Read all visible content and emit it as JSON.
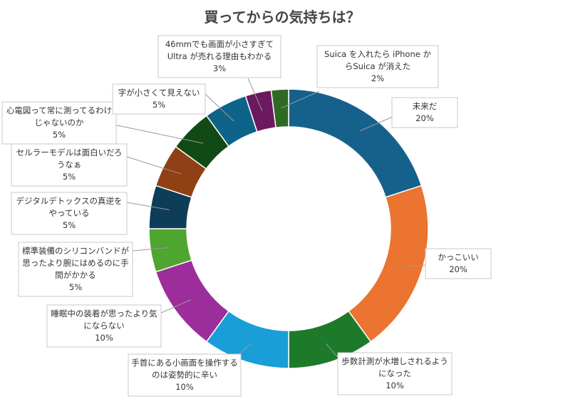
{
  "chart_data": {
    "type": "pie",
    "title": "買ってからの気持ちは？",
    "unit": "%",
    "slices": [
      {
        "lines": [
          "未来だ"
        ],
        "value": 20,
        "value_label": "20%",
        "color": "#15618c"
      },
      {
        "lines": [
          "かっこいい"
        ],
        "value": 20,
        "value_label": "20%",
        "color": "#ea7430"
      },
      {
        "lines": [
          "歩数計測が水増しされるよう",
          "になった"
        ],
        "value": 10,
        "value_label": "10%",
        "color": "#1d7a2b"
      },
      {
        "lines": [
          "手首にある小画面を操作する",
          "のは姿勢的に辛い"
        ],
        "value": 10,
        "value_label": "10%",
        "color": "#1a9ed8"
      },
      {
        "lines": [
          "睡眠中の装着が思ったより気",
          "にならない"
        ],
        "value": 10,
        "value_label": "10%",
        "color": "#9c2e9b"
      },
      {
        "lines": [
          "標準装備のシリコンバンドが",
          "思ったより腕にはめるのに手",
          "間がかかる"
        ],
        "value": 5,
        "value_label": "5%",
        "color": "#4ea52f"
      },
      {
        "lines": [
          "デジタルデトックスの真逆を",
          "やっている"
        ],
        "value": 5,
        "value_label": "5%",
        "color": "#0e3d57"
      },
      {
        "lines": [
          "セルラーモデルは面白いだろ",
          "うなぁ"
        ],
        "value": 5,
        "value_label": "5%",
        "color": "#913f14"
      },
      {
        "lines": [
          "心電図って常に測ってるわけ",
          "じゃないのか"
        ],
        "value": 5,
        "value_label": "5%",
        "color": "#124a16"
      },
      {
        "lines": [
          "字が小さくて見えない"
        ],
        "value": 5,
        "value_label": "5%",
        "color": "#0e6388"
      },
      {
        "lines": [
          "46mmでも画面が小さすぎて",
          "Ultra が売れる理由もわかる"
        ],
        "value": 3,
        "value_label": "3%",
        "color": "#6b1a5f"
      },
      {
        "lines": [
          "Suica を入れたら iPhone か",
          "らSuica が消えた"
        ],
        "value": 2,
        "value_label": "2%",
        "color": "#2f6a23"
      }
    ]
  }
}
